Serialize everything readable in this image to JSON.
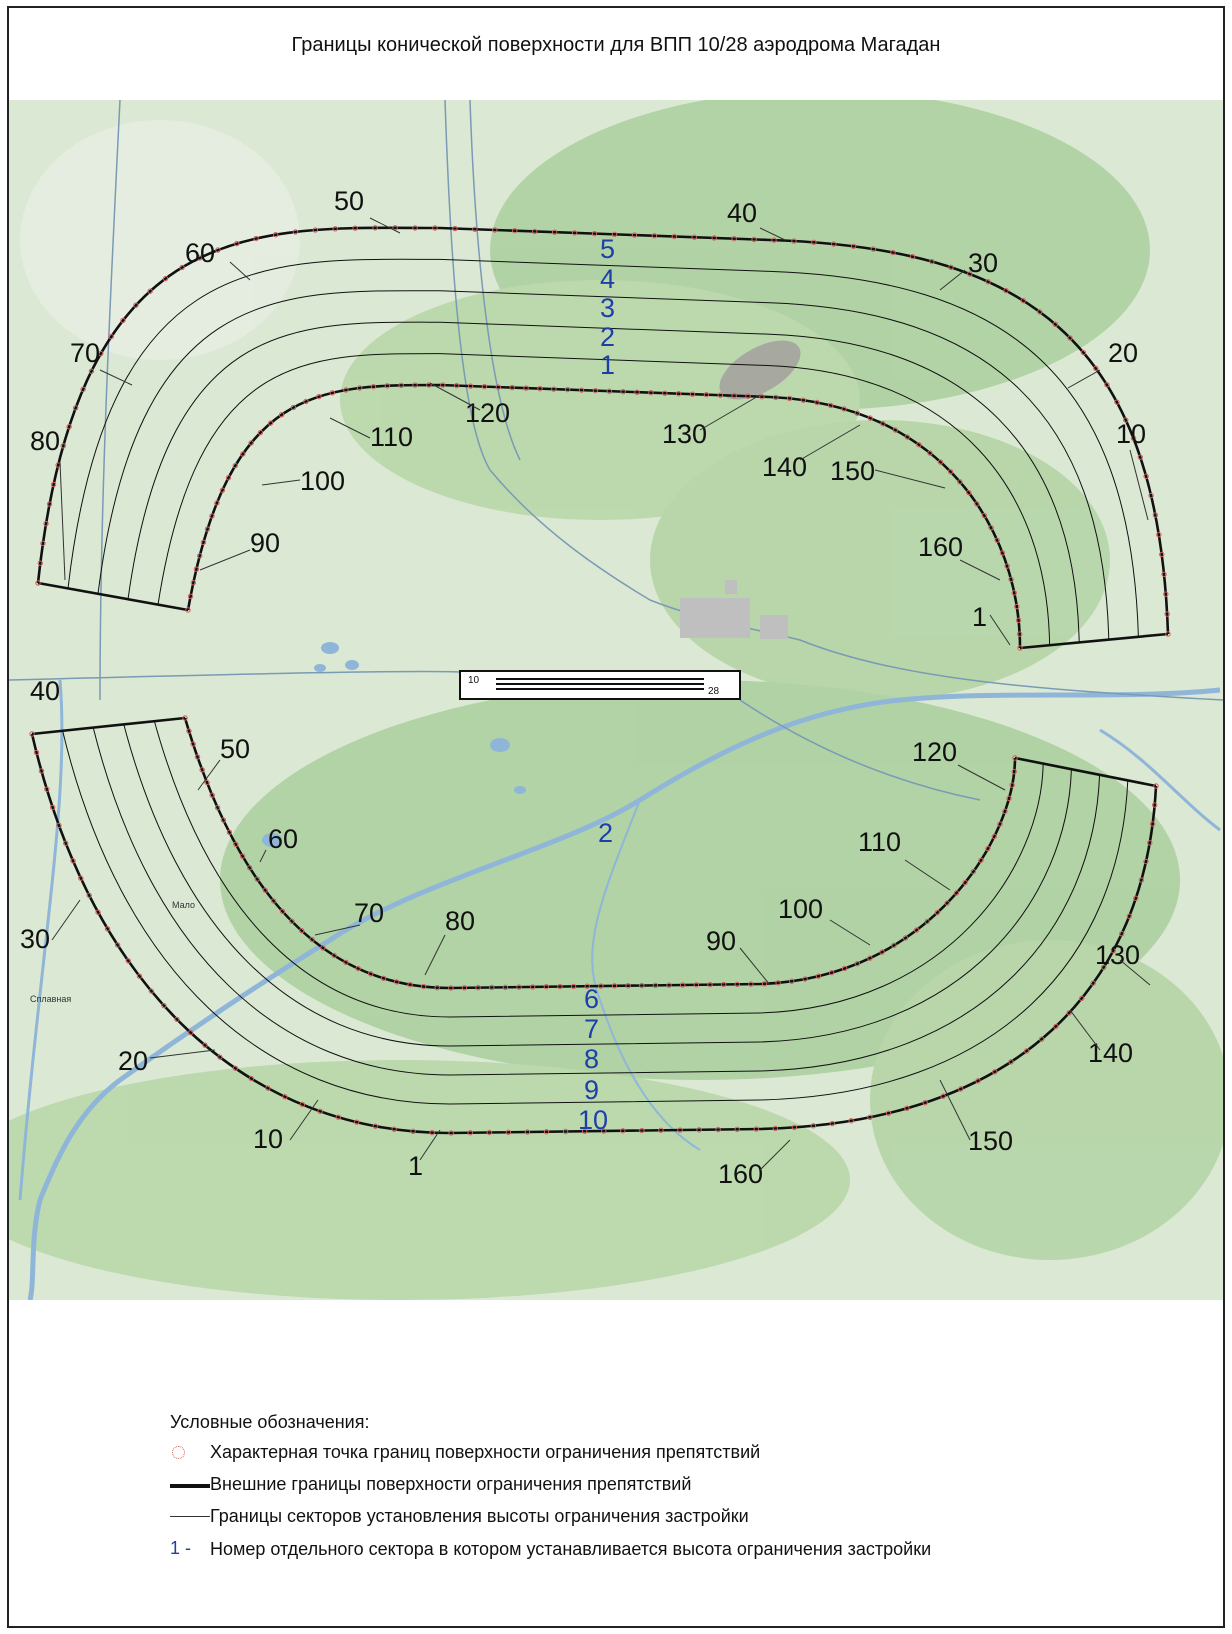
{
  "title": "Границы конической поверхности для ВПП 10/28 аэродрома Магадан",
  "runway": {
    "left_label": "10",
    "right_label": "28"
  },
  "north_sectors": [
    "1",
    "2",
    "3",
    "4",
    "5"
  ],
  "south_sectors": [
    "6",
    "7",
    "8",
    "9",
    "10"
  ],
  "center_label": "2",
  "north_outer_ticks": [
    "1",
    "10",
    "20",
    "30",
    "40",
    "50",
    "60",
    "70",
    "80"
  ],
  "north_inner_ticks": [
    "90",
    "100",
    "110",
    "120",
    "130",
    "140",
    "150",
    "160"
  ],
  "south_inner_ticks": [
    "50",
    "60",
    "70",
    "80",
    "90",
    "100",
    "110",
    "120"
  ],
  "south_outer_ticks": [
    "130",
    "140",
    "150",
    "160",
    "1",
    "10",
    "20",
    "30",
    "40"
  ],
  "place_labels": [
    "Мало",
    "Сплавная"
  ],
  "legend": {
    "title": "Условные обозначения:",
    "items": [
      {
        "symbol": "dot-circle-icon",
        "text": "Характерная точка границ поверхности ограничения препятствий"
      },
      {
        "symbol": "thick-line-icon",
        "text": "Внешние границы поверхности ограничения препятствий"
      },
      {
        "symbol": "thin-line-icon",
        "text": "Границы секторов установления высоты ограничения застройки"
      },
      {
        "symbol": "1 -",
        "text": "Номер отдельного сектора в котором устанавливается высота ограничения застройки"
      }
    ]
  },
  "colors": {
    "map_base": "#dbe8d3",
    "forest": "#a9cf9c",
    "river": "#8fb6d8",
    "sector_number": "#1f3fa8",
    "boundary": "#111111",
    "point_marker": "#d06060"
  }
}
